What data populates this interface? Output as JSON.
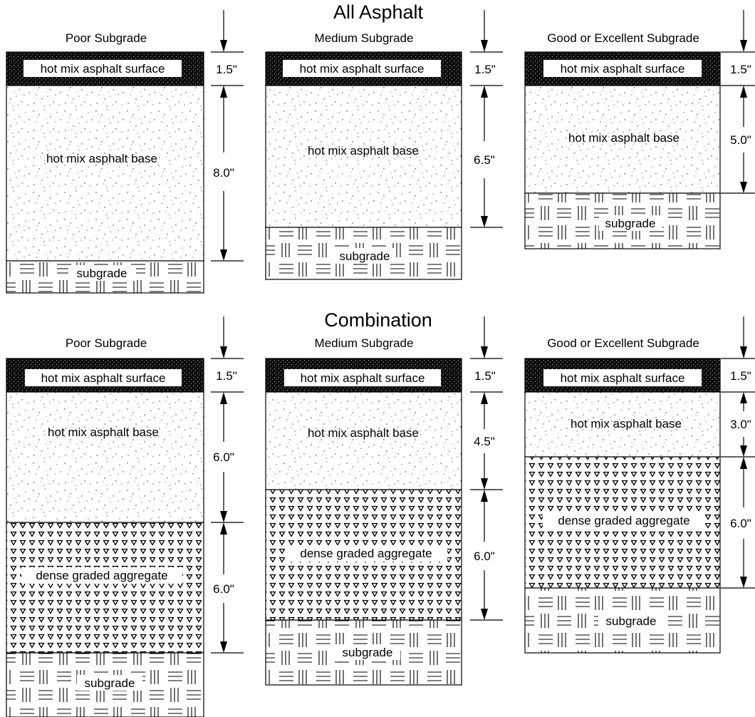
{
  "sections": [
    {
      "title": "All Asphalt",
      "columns": [
        {
          "subgrade_class": "Poor Subgrade",
          "layers": [
            {
              "label": "hot mix asphalt surface",
              "material": "asphalt-surface",
              "thickness": "1.5\""
            },
            {
              "label": "hot mix asphalt base",
              "material": "asphalt-base",
              "thickness": "8.0\""
            },
            {
              "label": "subgrade",
              "material": "subgrade",
              "thickness": ""
            }
          ]
        },
        {
          "subgrade_class": "Medium Subgrade",
          "layers": [
            {
              "label": "hot mix asphalt surface",
              "material": "asphalt-surface",
              "thickness": "1.5\""
            },
            {
              "label": "hot mix asphalt base",
              "material": "asphalt-base",
              "thickness": "6.5\""
            },
            {
              "label": "subgrade",
              "material": "subgrade",
              "thickness": ""
            }
          ]
        },
        {
          "subgrade_class": "Good or Excellent Subgrade",
          "layers": [
            {
              "label": "hot mix asphalt surface",
              "material": "asphalt-surface",
              "thickness": "1.5\""
            },
            {
              "label": "hot mix asphalt base",
              "material": "asphalt-base",
              "thickness": "5.0\""
            },
            {
              "label": "subgrade",
              "material": "subgrade",
              "thickness": ""
            }
          ]
        }
      ]
    },
    {
      "title": "Combination",
      "columns": [
        {
          "subgrade_class": "Poor Subgrade",
          "layers": [
            {
              "label": "hot mix asphalt surface",
              "material": "asphalt-surface",
              "thickness": "1.5\""
            },
            {
              "label": "hot mix asphalt base",
              "material": "asphalt-base",
              "thickness": "6.0\""
            },
            {
              "label": "dense graded aggregate",
              "material": "aggregate",
              "thickness": "6.0\""
            },
            {
              "label": "subgrade",
              "material": "subgrade",
              "thickness": ""
            }
          ]
        },
        {
          "subgrade_class": "Medium Subgrade",
          "layers": [
            {
              "label": "hot mix asphalt surface",
              "material": "asphalt-surface",
              "thickness": "1.5\""
            },
            {
              "label": "hot mix asphalt base",
              "material": "asphalt-base",
              "thickness": "4.5\""
            },
            {
              "label": "dense graded aggregate",
              "material": "aggregate",
              "thickness": "6.0\""
            },
            {
              "label": "subgrade",
              "material": "subgrade",
              "thickness": ""
            }
          ]
        },
        {
          "subgrade_class": "Good or Excellent Subgrade",
          "layers": [
            {
              "label": "hot mix asphalt surface",
              "material": "asphalt-surface",
              "thickness": "1.5\""
            },
            {
              "label": "hot mix asphalt base",
              "material": "asphalt-base",
              "thickness": "3.0\""
            },
            {
              "label": "dense graded aggregate",
              "material": "aggregate",
              "thickness": "6.0\""
            },
            {
              "label": "subgrade",
              "material": "subgrade",
              "thickness": ""
            }
          ]
        }
      ]
    }
  ]
}
